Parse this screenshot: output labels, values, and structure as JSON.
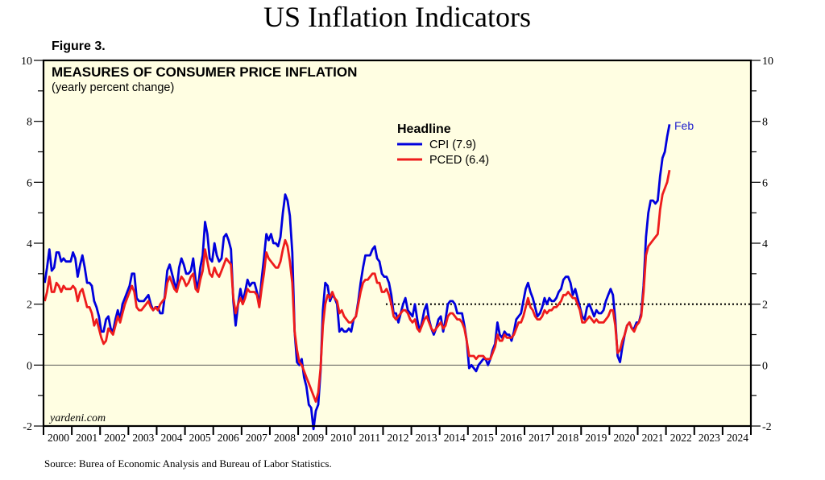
{
  "chart_data": {
    "type": "line",
    "title": "US Inflation Indicators",
    "figure_label": "Figure 3.",
    "panel_title": "MEASURES OF CONSUMER PRICE INFLATION",
    "panel_subtitle": "(yearly percent change)",
    "watermark": "yardeni.com",
    "source": "Source: Burea of Economic Analysis and Bureau of Labor Statistics.",
    "xlabel": "",
    "ylabel": "",
    "ylim": [
      -2,
      10
    ],
    "xlim": [
      2000,
      2025
    ],
    "yticks_major": [
      -2,
      0,
      2,
      4,
      6,
      8,
      10
    ],
    "yticks_minor": [
      -1,
      1,
      3,
      5,
      7,
      9
    ],
    "xtick_labels": [
      "2000",
      "2001",
      "2002",
      "2003",
      "2004",
      "2005",
      "2006",
      "2007",
      "2008",
      "2009",
      "2010",
      "2011",
      "2012",
      "2013",
      "2014",
      "2015",
      "2016",
      "2017",
      "2018",
      "2019",
      "2020",
      "2021",
      "2022",
      "2023",
      "2024"
    ],
    "reference_lines": [
      {
        "name": "zero-line",
        "y": 0,
        "style": "solid",
        "from_x": 2000
      },
      {
        "name": "target-2pct-line",
        "y": 2,
        "style": "dotted",
        "from_x": 2012.1
      }
    ],
    "legend": {
      "heading": "Headline",
      "placement": "top-center",
      "entries": [
        {
          "label": "CPI (7.9)",
          "color": "#0000dd"
        },
        {
          "label": "PCED (6.4)",
          "color": "#ee1c1c"
        }
      ]
    },
    "annotation": {
      "text": "Feb",
      "series": "CPI",
      "color": "#2222cc"
    },
    "start_year": 2000,
    "frequency": "monthly",
    "series": [
      {
        "name": "CPI",
        "color": "#0000dd",
        "values": [
          2.7,
          3.2,
          3.8,
          3.1,
          3.2,
          3.7,
          3.7,
          3.4,
          3.5,
          3.4,
          3.4,
          3.4,
          3.7,
          3.5,
          2.9,
          3.3,
          3.6,
          3.2,
          2.7,
          2.7,
          2.6,
          2.1,
          1.9,
          1.6,
          1.1,
          1.1,
          1.5,
          1.6,
          1.2,
          1.1,
          1.5,
          1.8,
          1.5,
          2.0,
          2.2,
          2.4,
          2.6,
          3.0,
          3.0,
          2.2,
          2.1,
          2.1,
          2.1,
          2.2,
          2.3,
          2.0,
          1.8,
          1.9,
          1.9,
          1.7,
          1.7,
          2.3,
          3.1,
          3.3,
          3.0,
          2.7,
          2.5,
          3.2,
          3.5,
          3.3,
          3.0,
          3.0,
          3.1,
          3.5,
          2.8,
          2.5,
          3.2,
          3.6,
          4.7,
          4.3,
          3.5,
          3.4,
          4.0,
          3.6,
          3.4,
          3.5,
          4.2,
          4.3,
          4.1,
          3.8,
          2.1,
          1.3,
          2.0,
          2.5,
          2.1,
          2.4,
          2.8,
          2.6,
          2.7,
          2.7,
          2.4,
          2.0,
          2.8,
          3.5,
          4.3,
          4.1,
          4.3,
          4.0,
          4.0,
          3.9,
          4.2,
          5.0,
          5.6,
          5.4,
          4.9,
          3.7,
          1.1,
          0.1,
          0.0,
          0.2,
          -0.4,
          -0.7,
          -1.3,
          -1.4,
          -2.1,
          -1.5,
          -1.3,
          -0.2,
          1.8,
          2.7,
          2.6,
          2.1,
          2.3,
          2.2,
          2.0,
          1.1,
          1.2,
          1.1,
          1.1,
          1.2,
          1.1,
          1.5,
          1.6,
          2.1,
          2.7,
          3.2,
          3.6,
          3.6,
          3.6,
          3.8,
          3.9,
          3.5,
          3.4,
          3.0,
          2.9,
          2.9,
          2.7,
          2.3,
          1.7,
          1.7,
          1.4,
          1.7,
          2.0,
          2.2,
          1.8,
          1.7,
          1.6,
          2.0,
          1.5,
          1.1,
          1.4,
          1.8,
          2.0,
          1.5,
          1.2,
          1.0,
          1.2,
          1.5,
          1.6,
          1.1,
          1.5,
          2.0,
          2.1,
          2.1,
          2.0,
          1.7,
          1.7,
          1.7,
          1.3,
          0.8,
          -0.1,
          0.0,
          -0.1,
          -0.2,
          0.0,
          0.1,
          0.2,
          0.2,
          0.0,
          0.2,
          0.5,
          0.7,
          1.4,
          1.0,
          0.9,
          1.1,
          1.0,
          1.0,
          0.8,
          1.1,
          1.5,
          1.6,
          1.7,
          2.1,
          2.5,
          2.7,
          2.4,
          2.2,
          1.9,
          1.6,
          1.7,
          1.9,
          2.2,
          2.0,
          2.2,
          2.1,
          2.1,
          2.2,
          2.4,
          2.5,
          2.8,
          2.9,
          2.9,
          2.7,
          2.3,
          2.5,
          2.2,
          1.9,
          1.6,
          1.5,
          1.9,
          2.0,
          1.8,
          1.6,
          1.8,
          1.7,
          1.7,
          1.8,
          2.1,
          2.3,
          2.5,
          2.3,
          1.5,
          0.3,
          0.1,
          0.6,
          1.0,
          1.3,
          1.4,
          1.2,
          1.2,
          1.4,
          1.4,
          1.7,
          2.6,
          4.2,
          5.0,
          5.4,
          5.4,
          5.3,
          5.4,
          6.2,
          6.8,
          7.0,
          7.5,
          7.9
        ]
      },
      {
        "name": "PCED",
        "color": "#ee1c1c",
        "values": [
          2.1,
          2.4,
          2.9,
          2.4,
          2.4,
          2.7,
          2.6,
          2.4,
          2.6,
          2.5,
          2.5,
          2.5,
          2.6,
          2.5,
          2.1,
          2.4,
          2.5,
          2.2,
          1.9,
          1.9,
          1.7,
          1.3,
          1.5,
          1.2,
          0.9,
          0.7,
          0.8,
          1.2,
          1.1,
          1.0,
          1.3,
          1.6,
          1.4,
          1.7,
          2.0,
          2.2,
          2.4,
          2.6,
          2.4,
          1.9,
          1.8,
          1.8,
          1.9,
          2.0,
          2.1,
          1.9,
          1.8,
          1.9,
          1.8,
          2.0,
          2.1,
          2.2,
          2.7,
          2.9,
          2.7,
          2.5,
          2.4,
          2.7,
          2.9,
          2.8,
          2.6,
          2.7,
          2.9,
          3.0,
          2.5,
          2.4,
          2.8,
          3.1,
          3.8,
          3.4,
          3.0,
          2.9,
          3.2,
          3.0,
          2.9,
          3.1,
          3.3,
          3.5,
          3.4,
          3.3,
          2.2,
          1.7,
          2.0,
          2.2,
          2.0,
          2.2,
          2.5,
          2.4,
          2.4,
          2.4,
          2.3,
          1.9,
          2.5,
          3.0,
          3.7,
          3.5,
          3.4,
          3.3,
          3.2,
          3.2,
          3.4,
          3.8,
          4.1,
          3.9,
          3.4,
          2.7,
          1.1,
          0.5,
          0.1,
          0.0,
          -0.2,
          -0.4,
          -0.6,
          -0.8,
          -1.0,
          -1.2,
          -0.9,
          -0.1,
          1.3,
          2.0,
          2.3,
          2.2,
          2.4,
          2.2,
          2.1,
          1.7,
          1.8,
          1.6,
          1.5,
          1.4,
          1.4,
          1.5,
          1.6,
          2.0,
          2.4,
          2.7,
          2.8,
          2.8,
          2.9,
          3.0,
          3.0,
          2.7,
          2.7,
          2.4,
          2.4,
          2.5,
          2.3,
          2.0,
          1.6,
          1.5,
          1.6,
          1.7,
          1.8,
          1.8,
          1.7,
          1.5,
          1.4,
          1.5,
          1.2,
          1.1,
          1.3,
          1.5,
          1.6,
          1.4,
          1.2,
          1.1,
          1.2,
          1.3,
          1.4,
          1.2,
          1.3,
          1.6,
          1.7,
          1.7,
          1.6,
          1.5,
          1.5,
          1.4,
          1.2,
          0.8,
          0.3,
          0.3,
          0.3,
          0.2,
          0.3,
          0.3,
          0.3,
          0.2,
          0.2,
          0.2,
          0.4,
          0.6,
          1.0,
          0.8,
          0.8,
          1.0,
          0.9,
          0.9,
          0.9,
          1.0,
          1.2,
          1.4,
          1.4,
          1.6,
          1.9,
          2.2,
          1.9,
          1.8,
          1.6,
          1.5,
          1.5,
          1.6,
          1.8,
          1.7,
          1.8,
          1.8,
          1.9,
          1.9,
          2.0,
          2.1,
          2.3,
          2.3,
          2.4,
          2.3,
          2.2,
          2.2,
          2.0,
          1.8,
          1.4,
          1.4,
          1.5,
          1.6,
          1.5,
          1.4,
          1.5,
          1.4,
          1.4,
          1.4,
          1.5,
          1.6,
          1.8,
          1.8,
          1.3,
          0.4,
          0.5,
          0.8,
          1.0,
          1.3,
          1.4,
          1.2,
          1.1,
          1.3,
          1.4,
          1.6,
          2.4,
          3.6,
          3.9,
          4.0,
          4.1,
          4.2,
          4.3,
          5.1,
          5.6,
          5.8,
          6.0,
          6.4
        ]
      }
    ]
  }
}
